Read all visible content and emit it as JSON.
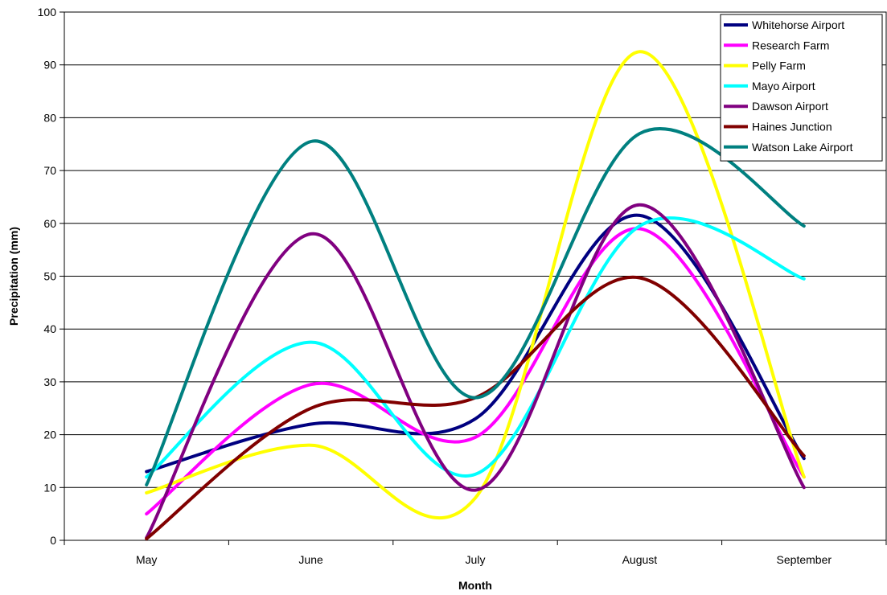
{
  "chart_data": {
    "type": "line",
    "title": "",
    "xlabel": "Month",
    "ylabel": "Precipitation (mm)",
    "categories": [
      "May",
      "June",
      "July",
      "August",
      "September"
    ],
    "ylim": [
      0,
      100
    ],
    "yticks": [
      0,
      10,
      20,
      30,
      40,
      50,
      60,
      70,
      80,
      90,
      100
    ],
    "grid": "horizontal",
    "legend_position": "top-right",
    "smooth": true,
    "series": [
      {
        "name": "Whitehorse Airport",
        "color": "#000080",
        "values": [
          13,
          22,
          23,
          61.5,
          15.5
        ]
      },
      {
        "name": "Research Farm",
        "color": "#ff00ff",
        "values": [
          5,
          29.5,
          19.5,
          59,
          12
        ]
      },
      {
        "name": "Pelly Farm",
        "color": "#ffff00",
        "values": [
          9,
          18,
          8,
          92.5,
          12
        ]
      },
      {
        "name": "Mayo Airport",
        "color": "#00ffff",
        "values": [
          12,
          37.5,
          12.5,
          59.5,
          49.5
        ]
      },
      {
        "name": "Dawson Airport",
        "color": "#800080",
        "values": [
          0.5,
          58,
          9.5,
          63.5,
          10
        ]
      },
      {
        "name": "Haines Junction",
        "color": "#800000",
        "values": [
          0.3,
          25,
          27,
          49.7,
          16
        ]
      },
      {
        "name": "Watson Lake Airport",
        "color": "#008080",
        "values": [
          10.5,
          75.5,
          27,
          77,
          59.5
        ]
      }
    ]
  }
}
